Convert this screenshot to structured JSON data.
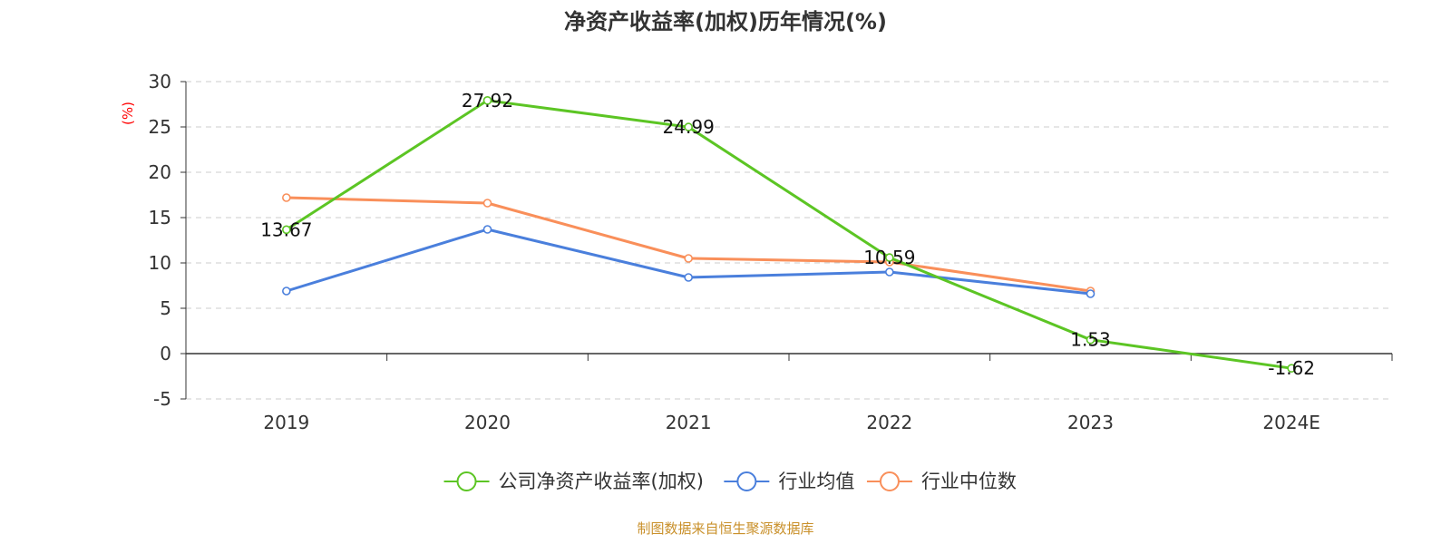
{
  "chart_data": {
    "type": "line",
    "title": "净资产收益率(加权)历年情况(%)",
    "ylabel": "(%)",
    "xlabel": "",
    "categories": [
      "2019",
      "2020",
      "2021",
      "2022",
      "2023",
      "2024E"
    ],
    "ylim": [
      -5,
      30
    ],
    "yticks": [
      30,
      25,
      20,
      15,
      10,
      5,
      0,
      -5
    ],
    "grid": true,
    "legend_position": "bottom",
    "series": [
      {
        "name": "公司净资产收益率(加权)",
        "color": "#5cc524",
        "values": [
          13.67,
          27.92,
          24.99,
          10.59,
          1.53,
          -1.62
        ],
        "labels": [
          "13.67",
          "27.92",
          "24.99",
          "10.59",
          "1.53",
          "-1.62"
        ]
      },
      {
        "name": "行业均值",
        "color": "#4a7fdc",
        "values": [
          6.9,
          13.7,
          8.4,
          9.0,
          6.6,
          null
        ]
      },
      {
        "name": "行业中位数",
        "color": "#f98f5a",
        "values": [
          17.2,
          16.6,
          10.5,
          10.1,
          6.9,
          null
        ]
      }
    ],
    "source": "制图数据来自恒生聚源数据库"
  }
}
